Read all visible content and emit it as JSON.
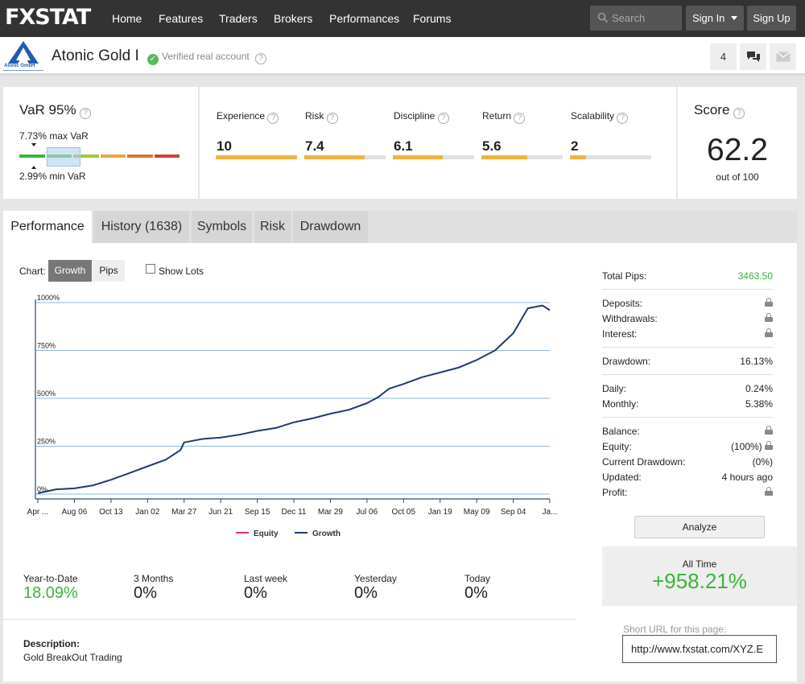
{
  "nav": {
    "logo": "FXSTAT",
    "links": [
      "Home",
      "Features",
      "Traders",
      "Brokers",
      "Performances",
      "Forums"
    ],
    "search_placeholder": "Search",
    "sign_in": "Sign In",
    "sign_up": "Sign Up"
  },
  "header": {
    "logo_text": "Atonic GmbH",
    "title": "Atonic Gold I",
    "verified": "Verified real account",
    "count": "4"
  },
  "var": {
    "title": "VaR 95%",
    "max_label": "7.73% max VaR",
    "min_label": "2.99% min VaR",
    "segment_colors": [
      "#3cb43c",
      "#6cc04a",
      "#a6c83c",
      "#e8a83c",
      "#e0703c",
      "#d83c3c"
    ]
  },
  "metrics": [
    {
      "label": "Experience",
      "value": "10",
      "level": 1.0
    },
    {
      "label": "Risk",
      "value": "7.4",
      "level": 0.74
    },
    {
      "label": "Discipline",
      "value": "6.1",
      "level": 0.61
    },
    {
      "label": "Return",
      "value": "5.6",
      "level": 0.56
    },
    {
      "label": "Scalability",
      "value": "2",
      "level": 0.2
    }
  ],
  "score": {
    "title": "Score",
    "value": "62.2",
    "sub": "out of 100"
  },
  "tabs": [
    "Performance",
    "History (1638)",
    "Symbols",
    "Risk",
    "Drawdown"
  ],
  "chart_controls": {
    "label": "Chart:",
    "growth": "Growth",
    "pips": "Pips",
    "show_lots": "Show Lots"
  },
  "chart_data": {
    "type": "line",
    "yticks": [
      "1000%",
      "750%",
      "500%",
      "250%",
      "0%"
    ],
    "ylim": [
      -25,
      1000
    ],
    "xticks": [
      "Apr ...",
      "Aug 06",
      "Oct 13",
      "Jan 02",
      "Mar 27",
      "Jun 21",
      "Sep 15",
      "Dec 11",
      "Mar 29",
      "Jul 06",
      "Oct 05",
      "Jan 19",
      "May 09",
      "Sep 04",
      "Ja..."
    ],
    "legend": [
      "Equity",
      "Growth"
    ],
    "legend_colors": [
      "#e0308c",
      "#1f3a70"
    ],
    "series": [
      {
        "name": "Growth",
        "x": [
          0,
          0.5,
          1,
          1.5,
          2,
          2.5,
          3,
          3.5,
          3.9,
          4,
          4.5,
          5,
          5.5,
          6,
          6.5,
          7,
          7.5,
          8,
          8.5,
          9,
          9.3,
          9.6,
          10,
          10.5,
          11,
          11.5,
          12,
          12.5,
          13,
          13.4,
          13.8,
          14
        ],
        "y": [
          5,
          25,
          30,
          45,
          75,
          110,
          145,
          180,
          230,
          270,
          288,
          295,
          310,
          330,
          345,
          375,
          395,
          420,
          440,
          475,
          505,
          550,
          575,
          610,
          635,
          660,
          700,
          750,
          840,
          970,
          985,
          960
        ]
      }
    ]
  },
  "stats": {
    "total_pips": {
      "label": "Total Pips:",
      "value": "3463.50"
    },
    "deposits": "Deposits:",
    "withdrawals": "Withdrawals:",
    "interest": "Interest:",
    "drawdown": {
      "label": "Drawdown:",
      "value": "16.13%"
    },
    "daily": {
      "label": "Daily:",
      "value": "0.24%"
    },
    "monthly": {
      "label": "Monthly:",
      "value": "5.38%"
    },
    "balance": "Balance:",
    "equity": {
      "label": "Equity:",
      "value": "(100%)"
    },
    "current_drawdown": {
      "label": "Current Drawdown:",
      "value": "(0%)"
    },
    "updated": {
      "label": "Updated:",
      "value": "4 hours ago"
    },
    "profit": "Profit:"
  },
  "analyze": "Analyze",
  "all_time": {
    "label": "All Time",
    "value": "+958.21%"
  },
  "short_url": {
    "label": "Short URL for this page:",
    "value": "http://www.fxstat.com/XYZ.E"
  },
  "periods": [
    {
      "label": "Year-to-Date",
      "value": "18.09%"
    },
    {
      "label": "3 Months",
      "value": "0%"
    },
    {
      "label": "Last week",
      "value": "0%"
    },
    {
      "label": "Yesterday",
      "value": "0%"
    },
    {
      "label": "Today",
      "value": "0%"
    }
  ],
  "description": {
    "label": "Description:",
    "text": "Gold BreakOut Trading"
  },
  "colors": {
    "green": "#3cb43c",
    "metric_fill": "#f0b43c",
    "active_btn": "#777777"
  }
}
